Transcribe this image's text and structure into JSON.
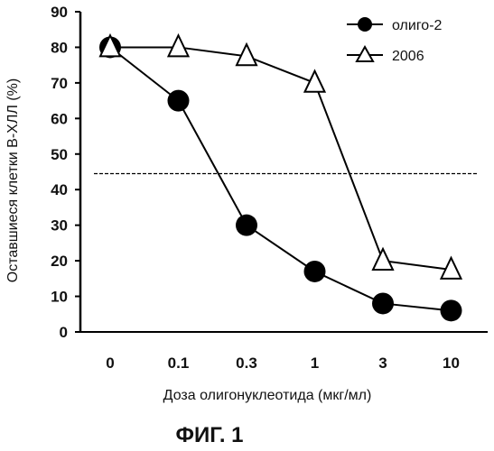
{
  "chart_data": {
    "type": "line",
    "categories": [
      "0",
      "0.1",
      "0.3",
      "1",
      "3",
      "10"
    ],
    "xlabel": "Доза олигонуклеотида (мкг/мл)",
    "ylabel": "Оставшиеся клетки В-ХЛЛ (%)",
    "ylim": [
      0,
      90
    ],
    "yticks": [
      "0",
      "10",
      "20",
      "30",
      "40",
      "50",
      "60",
      "70",
      "80",
      "90"
    ],
    "grid": false,
    "legend_position": "top-right",
    "reference_line": {
      "y": 44.5,
      "style": "dashed"
    },
    "series": [
      {
        "name": "олиго-2",
        "marker": "filled-circle",
        "color": "#000000",
        "values": [
          80,
          65,
          30,
          17,
          8,
          6
        ]
      },
      {
        "name": "2006",
        "marker": "open-triangle",
        "color": "#000000",
        "values": [
          80,
          80,
          77.5,
          70,
          20,
          17.5
        ]
      }
    ]
  },
  "caption": "ФИГ. 1"
}
